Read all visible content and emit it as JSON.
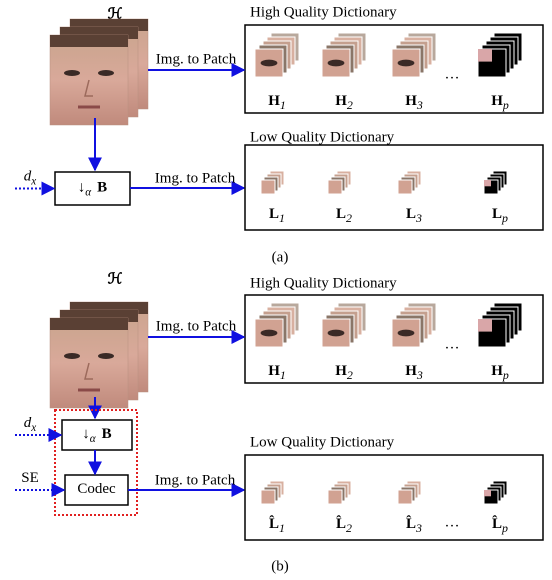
{
  "panels": [
    {
      "label": "(a)",
      "source": "ℋ",
      "high": {
        "title": "High Quality Dictionary",
        "arrow": "Img. to Patch",
        "ellipsis": "…",
        "items": [
          {
            "base": "H",
            "sub": "1"
          },
          {
            "base": "H",
            "sub": "2"
          },
          {
            "base": "H",
            "sub": "3"
          },
          {
            "base": "H",
            "sub": "p"
          }
        ]
      },
      "low": {
        "title": "Low Quality Dictionary",
        "arrow": "Img. to Patch",
        "items": [
          {
            "base": "L",
            "sub": "1"
          },
          {
            "base": "L",
            "sub": "2"
          },
          {
            "base": "L",
            "sub": "3"
          },
          {
            "base": "L",
            "sub": "p"
          }
        ]
      },
      "inputs": [
        {
          "base": "d",
          "sub": "x"
        }
      ],
      "ops": [
        {
          "base": "↓",
          "sub": "α",
          "rest": "B"
        }
      ]
    },
    {
      "label": "(b)",
      "source": "ℋ",
      "high": {
        "title": "High Quality Dictionary",
        "arrow": "Img. to Patch",
        "ellipsis": "…",
        "items": [
          {
            "base": "H",
            "sub": "1"
          },
          {
            "base": "H",
            "sub": "2"
          },
          {
            "base": "H",
            "sub": "3"
          },
          {
            "base": "H",
            "sub": "p"
          }
        ]
      },
      "low": {
        "title": "Low Quality Dictionary",
        "arrow": "Img. to Patch",
        "ellipsis": "…",
        "items": [
          {
            "base": "L̂",
            "sub": "1"
          },
          {
            "base": "L̂",
            "sub": "2"
          },
          {
            "base": "L̂",
            "sub": "3"
          },
          {
            "base": "L̂",
            "sub": "p"
          }
        ]
      },
      "inputs": [
        {
          "base": "d",
          "sub": "x"
        },
        {
          "base": "SE"
        }
      ],
      "ops": [
        {
          "base": "↓",
          "sub": "α",
          "rest": "B"
        },
        {
          "base": "Codec"
        }
      ]
    }
  ]
}
